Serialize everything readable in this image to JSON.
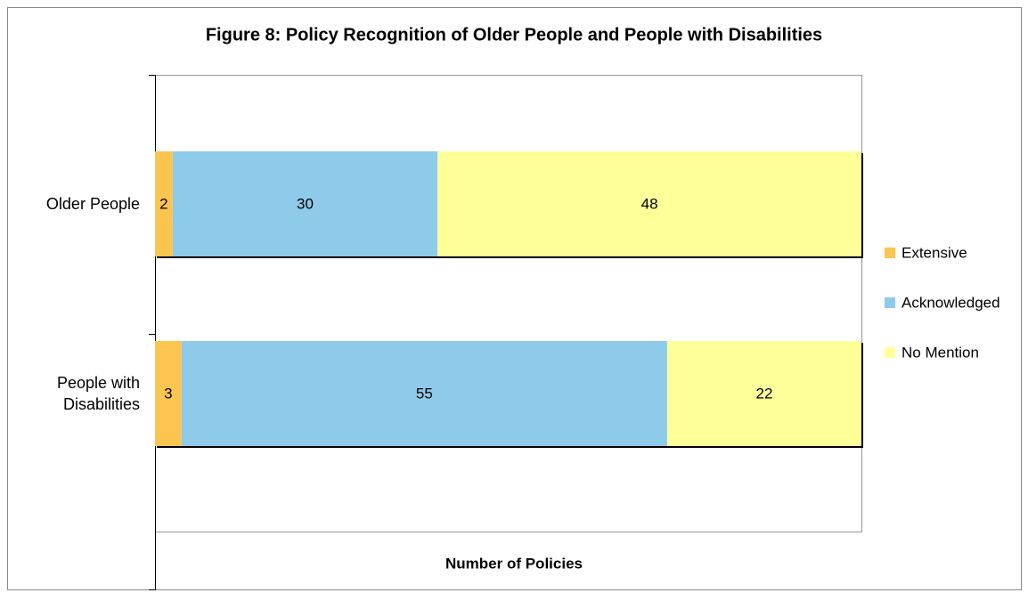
{
  "chart_data": {
    "type": "stacked_barh",
    "title": "Figure 8:  Policy Recognition of Older People and People with Disabilities",
    "xlabel": "Number of Policies",
    "categories": [
      "Older People",
      "People with Disabilities"
    ],
    "series": [
      {
        "name": "Extensive",
        "color": "#fcc54f",
        "values": [
          2,
          3
        ]
      },
      {
        "name": "Acknowledged",
        "color": "#8ecae9",
        "values": [
          30,
          55
        ]
      },
      {
        "name": "No Mention",
        "color": "#ffff99",
        "values": [
          48,
          22
        ]
      }
    ],
    "xlim": [
      0,
      80
    ],
    "legend": "right"
  }
}
